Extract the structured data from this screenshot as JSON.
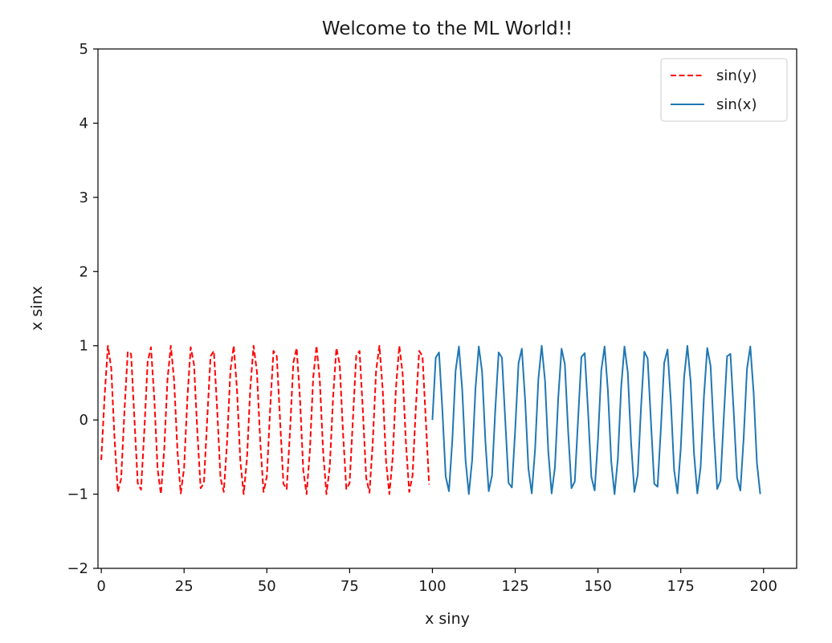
{
  "chart_data": {
    "type": "line",
    "title": "Welcome to the ML World!!",
    "xlabel": "x siny",
    "ylabel": "x sinx",
    "xlim": [
      -1,
      210
    ],
    "ylim": [
      -2,
      5
    ],
    "xticks": [
      0,
      25,
      50,
      75,
      100,
      125,
      150,
      175,
      200
    ],
    "xtick_labels": [
      "0",
      "25",
      "50",
      "75",
      "100",
      "125",
      "150",
      "175",
      "200"
    ],
    "yticks": [
      -2,
      -1,
      0,
      1,
      2,
      3,
      4,
      5
    ],
    "ytick_labels": [
      "−2",
      "−1",
      "0",
      "1",
      "2",
      "3",
      "4",
      "5"
    ],
    "grid": false,
    "legend_position": "top-right",
    "series": [
      {
        "name": "sin(y)",
        "color": "#ff0000",
        "style": "dashed",
        "x": [
          0,
          1,
          2,
          3,
          4,
          5,
          6,
          7,
          8,
          9,
          10,
          11,
          12,
          13,
          14,
          15,
          16,
          17,
          18,
          19,
          20,
          21,
          22,
          23,
          24,
          25,
          26,
          27,
          28,
          29,
          30,
          31,
          32,
          33,
          34,
          35,
          36,
          37,
          38,
          39,
          40,
          41,
          42,
          43,
          44,
          45,
          46,
          47,
          48,
          49,
          50,
          51,
          52,
          53,
          54,
          55,
          56,
          57,
          58,
          59,
          60,
          61,
          62,
          63,
          64,
          65,
          66,
          67,
          68,
          69,
          70,
          71,
          72,
          73,
          74,
          75,
          76,
          77,
          78,
          79,
          80,
          81,
          82,
          83,
          84,
          85,
          86,
          87,
          88,
          89,
          90,
          91,
          92,
          93,
          94,
          95,
          96,
          97,
          98,
          99
        ],
        "y": [
          -0.54,
          0.32,
          1.0,
          0.7,
          -0.25,
          -0.97,
          -0.79,
          0.12,
          0.92,
          0.89,
          0.02,
          -0.85,
          -0.94,
          -0.14,
          0.78,
          0.98,
          0.3,
          -0.66,
          -1.0,
          -0.41,
          0.55,
          1.0,
          0.53,
          -0.42,
          -0.99,
          -0.65,
          0.29,
          0.98,
          0.75,
          -0.15,
          -0.92,
          -0.85,
          0.02,
          0.86,
          0.93,
          0.14,
          -0.78,
          -0.97,
          -0.29,
          0.67,
          1.0,
          0.4,
          -0.56,
          -1.0,
          -0.52,
          0.43,
          1.0,
          0.65,
          -0.29,
          -0.97,
          -0.76,
          0.15,
          0.93,
          0.86,
          -0.01,
          -0.86,
          -0.93,
          -0.15,
          0.77,
          0.97,
          0.29,
          -0.68,
          -1.0,
          -0.41,
          0.57,
          1.0,
          0.52,
          -0.43,
          -1.0,
          -0.63,
          0.3,
          0.97,
          0.75,
          -0.17,
          -0.93,
          -0.85,
          0.02,
          0.87,
          0.93,
          0.12,
          -0.78,
          -0.98,
          -0.29,
          0.67,
          1.0,
          0.4,
          -0.56,
          -1.0,
          -0.51,
          0.44,
          1.0,
          0.63,
          -0.31,
          -0.97,
          -0.75,
          0.17,
          0.93,
          0.86,
          0.0,
          -0.87
        ]
      },
      {
        "name": "sin(x)",
        "color": "#1f77b4",
        "style": "solid",
        "x": [
          100,
          101,
          102,
          103,
          104,
          105,
          106,
          107,
          108,
          109,
          110,
          111,
          112,
          113,
          114,
          115,
          116,
          117,
          118,
          119,
          120,
          121,
          122,
          123,
          124,
          125,
          126,
          127,
          128,
          129,
          130,
          131,
          132,
          133,
          134,
          135,
          136,
          137,
          138,
          139,
          140,
          141,
          142,
          143,
          144,
          145,
          146,
          147,
          148,
          149,
          150,
          151,
          152,
          153,
          154,
          155,
          156,
          157,
          158,
          159,
          160,
          161,
          162,
          163,
          164,
          165,
          166,
          167,
          168,
          169,
          170,
          171,
          172,
          173,
          174,
          175,
          176,
          177,
          178,
          179,
          180,
          181,
          182,
          183,
          184,
          185,
          186,
          187,
          188,
          189,
          190,
          191,
          192,
          193,
          194,
          195,
          196,
          197,
          198,
          199
        ],
        "y": [
          0.0,
          0.84,
          0.91,
          0.14,
          -0.76,
          -0.96,
          -0.28,
          0.66,
          0.99,
          0.41,
          -0.54,
          -1.0,
          -0.54,
          0.42,
          0.99,
          0.65,
          -0.29,
          -0.96,
          -0.75,
          0.15,
          0.91,
          0.84,
          -0.01,
          -0.85,
          -0.91,
          -0.13,
          0.76,
          0.96,
          0.27,
          -0.66,
          -0.99,
          -0.4,
          0.55,
          1.0,
          0.53,
          -0.43,
          -0.99,
          -0.64,
          0.3,
          0.96,
          0.75,
          -0.16,
          -0.92,
          -0.83,
          0.02,
          0.85,
          0.9,
          0.12,
          -0.77,
          -0.95,
          -0.26,
          0.67,
          0.99,
          0.39,
          -0.56,
          -1.0,
          -0.52,
          0.44,
          0.99,
          0.64,
          -0.31,
          -0.97,
          -0.74,
          0.17,
          0.92,
          0.83,
          -0.03,
          -0.86,
          -0.9,
          -0.11,
          0.77,
          0.95,
          0.25,
          -0.68,
          -0.99,
          -0.38,
          0.57,
          1.0,
          0.51,
          -0.45,
          -0.99,
          -0.63,
          0.32,
          0.97,
          0.73,
          -0.18,
          -0.93,
          -0.82,
          0.04,
          0.86,
          0.89,
          0.1,
          -0.78,
          -0.95,
          -0.24,
          0.69,
          0.99,
          0.37,
          -0.58,
          -1.0
        ]
      }
    ]
  }
}
